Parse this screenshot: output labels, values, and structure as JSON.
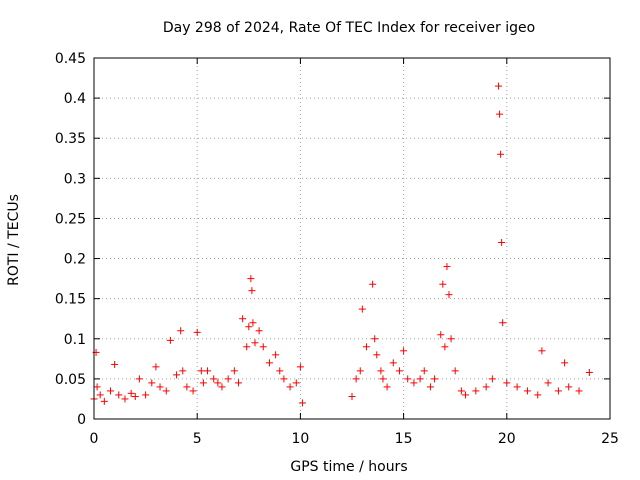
{
  "chart_data": {
    "type": "scatter",
    "title": "Day 298 of 2024, Rate Of TEC Index for receiver igeo",
    "xlabel": "GPS time / hours",
    "ylabel": "ROTI / TECUs",
    "xlim": [
      0,
      25
    ],
    "ylim": [
      0,
      0.45
    ],
    "xticks": [
      "0",
      "5",
      "10",
      "15",
      "20",
      "25"
    ],
    "yticks": [
      "0",
      "0.05",
      "0.1",
      "0.15",
      "0.2",
      "0.25",
      "0.3",
      "0.35",
      "0.4",
      "0.45"
    ],
    "grid": true,
    "marker": "+",
    "color": "#ff0000",
    "series": [
      {
        "x": [
          0.0,
          0.1,
          0.15,
          0.3,
          0.5,
          0.8,
          1.0,
          1.2,
          1.5,
          1.8,
          2.0,
          2.2,
          2.5,
          2.8,
          3.0,
          3.2,
          3.5,
          3.7,
          4.0,
          4.2,
          4.3,
          4.5,
          4.8,
          5.0,
          5.2,
          5.3,
          5.5,
          5.8,
          6.0,
          6.2,
          6.5,
          6.8,
          7.0,
          7.2,
          7.4,
          7.5,
          7.6,
          7.65,
          7.7,
          7.8,
          8.0,
          8.2,
          8.5,
          8.8,
          9.0,
          9.2,
          9.5,
          9.8,
          10.0,
          10.1,
          12.5,
          12.7,
          12.9,
          13.0,
          13.2,
          13.5,
          13.6,
          13.7,
          13.9,
          14.0,
          14.2,
          14.5,
          14.8,
          15.0,
          15.2,
          15.5,
          15.8,
          16.0,
          16.3,
          16.5,
          16.8,
          16.9,
          17.0,
          17.1,
          17.2,
          17.3,
          17.5,
          17.8,
          18.0,
          18.5,
          19.0,
          19.3,
          19.6,
          19.65,
          19.7,
          19.75,
          19.8,
          20.0,
          20.5,
          21.0,
          21.5,
          21.7,
          22.0,
          22.5,
          22.8,
          23.0,
          23.5,
          24.0
        ],
        "y": [
          0.025,
          0.083,
          0.04,
          0.03,
          0.022,
          0.035,
          0.068,
          0.03,
          0.025,
          0.032,
          0.028,
          0.05,
          0.03,
          0.045,
          0.065,
          0.04,
          0.035,
          0.098,
          0.055,
          0.11,
          0.06,
          0.04,
          0.035,
          0.108,
          0.06,
          0.045,
          0.06,
          0.05,
          0.045,
          0.04,
          0.05,
          0.06,
          0.045,
          0.125,
          0.09,
          0.115,
          0.175,
          0.16,
          0.12,
          0.095,
          0.11,
          0.09,
          0.07,
          0.08,
          0.06,
          0.05,
          0.04,
          0.045,
          0.065,
          0.02,
          0.028,
          0.05,
          0.06,
          0.137,
          0.09,
          0.168,
          0.1,
          0.08,
          0.06,
          0.05,
          0.04,
          0.07,
          0.06,
          0.085,
          0.05,
          0.045,
          0.05,
          0.06,
          0.04,
          0.05,
          0.105,
          0.168,
          0.09,
          0.19,
          0.155,
          0.1,
          0.06,
          0.035,
          0.03,
          0.035,
          0.04,
          0.05,
          0.415,
          0.38,
          0.33,
          0.22,
          0.12,
          0.045,
          0.04,
          0.035,
          0.03,
          0.085,
          0.045,
          0.035,
          0.07,
          0.04,
          0.035,
          0.058
        ]
      }
    ]
  }
}
